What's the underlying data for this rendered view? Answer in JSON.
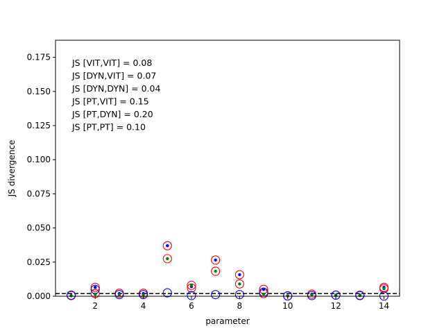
{
  "chart_data": {
    "type": "scatter",
    "title": "",
    "xlabel": "parameter",
    "ylabel": "JS divergence",
    "xlim": [
      0.35,
      14.65
    ],
    "ylim": [
      0,
      0.1875
    ],
    "xticks": [
      2,
      4,
      6,
      8,
      10,
      12,
      14
    ],
    "yticks": [
      0.0,
      0.025,
      0.05,
      0.075,
      0.1,
      0.125,
      0.15,
      0.175
    ],
    "ytick_labels": [
      "0.000",
      "0.025",
      "0.050",
      "0.075",
      "0.100",
      "0.125",
      "0.150",
      "0.175"
    ],
    "grid": false,
    "annotations": [
      "JS [VIT,VIT] = 0.08",
      "JS [DYN,VIT] = 0.07",
      "JS [DYN,DYN] = 0.04",
      "JS [PT,VIT] = 0.15",
      "JS [PT,DYN] = 0.20",
      "JS [PT,PT] = 0.10"
    ],
    "reference_line": {
      "y": 0.002,
      "style": "dashed",
      "color": "#000000"
    },
    "colors": {
      "red": "#ff0000",
      "blue": "#0000ff",
      "green": "#008000"
    },
    "series": [
      {
        "marker": "open-circle",
        "color": "#ff0000",
        "x": [
          1,
          2,
          3,
          4,
          5,
          6,
          7,
          8,
          9,
          10,
          11,
          12,
          13,
          14
        ],
        "y": [
          0.0005,
          0.0065,
          0.0022,
          0.0022,
          0.037,
          0.008,
          0.0265,
          0.0158,
          0.005,
          0.0003,
          0.0015,
          0.0008,
          0.0008,
          0.0065
        ]
      },
      {
        "marker": "open-circle",
        "color": "#ff0000",
        "x": [
          2,
          6,
          7,
          8,
          9,
          14
        ],
        "y": [
          0.002,
          0.006,
          0.0183,
          0.009,
          0.002,
          0.0055
        ]
      },
      {
        "marker": "open-circle",
        "color": "#ff0000",
        "x": [
          5
        ],
        "y": [
          0.0275
        ]
      },
      {
        "marker": "open-circle",
        "color": "#0000ff",
        "x": [
          1,
          2,
          3,
          4,
          5,
          6,
          7,
          8,
          9,
          10,
          11,
          12,
          13,
          14
        ],
        "y": [
          0.0008,
          0.005,
          0.0012,
          0.0012,
          0.0025,
          0.0005,
          0.0012,
          0.0012,
          0.003,
          0.0002,
          0.0005,
          0.0008,
          0.0005,
          0.0002
        ]
      },
      {
        "marker": "dot",
        "color": "#0000ff",
        "x": [
          1,
          2,
          3,
          4,
          5,
          6,
          7,
          8,
          9,
          10,
          11,
          12,
          13,
          14
        ],
        "y": [
          0.0005,
          0.0065,
          0.002,
          0.002,
          0.037,
          0.007,
          0.0265,
          0.0158,
          0.005,
          0.0003,
          0.0015,
          0.0008,
          0.0008,
          0.0065
        ]
      },
      {
        "marker": "dot",
        "color": "#008000",
        "x": [
          1,
          2,
          3,
          4,
          5,
          6,
          7,
          8,
          9,
          10,
          11,
          12,
          13,
          14
        ],
        "y": [
          0.0003,
          0.0015,
          0.001,
          0.001,
          0.0275,
          0.008,
          0.0183,
          0.009,
          0.0015,
          0.0002,
          0.001,
          0.0005,
          0.0005,
          0.0055
        ]
      }
    ]
  }
}
